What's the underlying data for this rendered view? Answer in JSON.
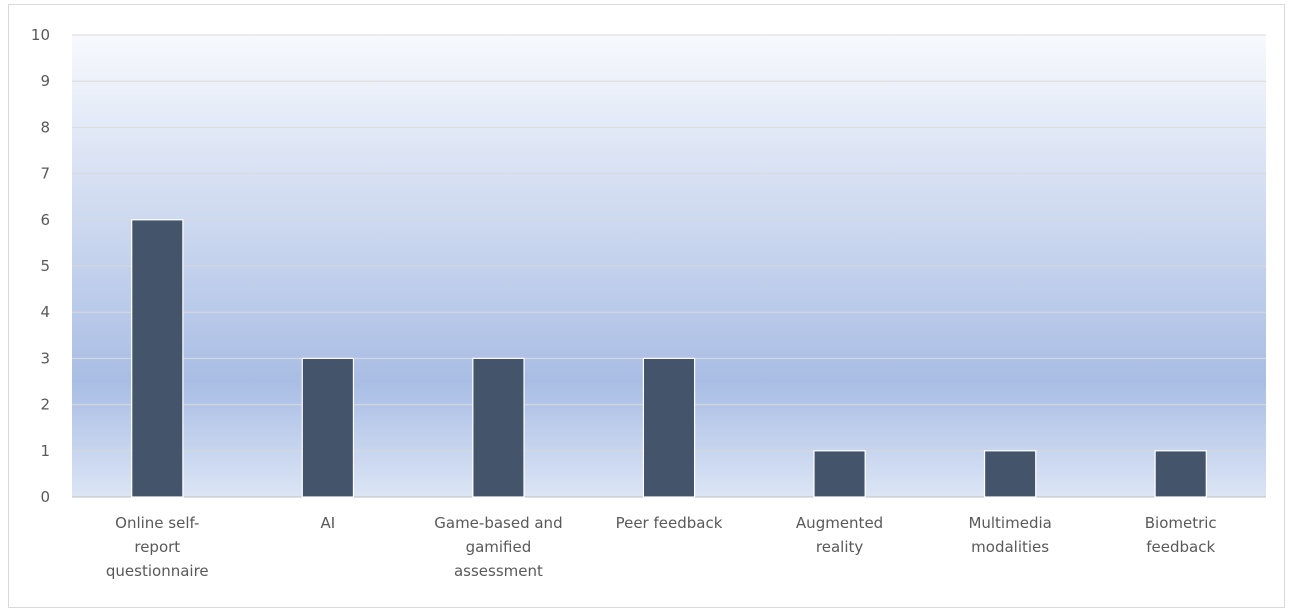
{
  "chart_data": {
    "type": "bar",
    "categories": [
      [
        "Online self-",
        "report",
        "questionnaire"
      ],
      [
        "AI"
      ],
      [
        "Game-based and",
        "gamified",
        "assessment"
      ],
      [
        "Peer feedback"
      ],
      [
        "Augmented",
        "reality"
      ],
      [
        "Multimedia",
        "modalities"
      ],
      [
        "Biometric",
        "feedback"
      ]
    ],
    "values": [
      6,
      3,
      3,
      3,
      1,
      1,
      1
    ],
    "ylim": [
      0,
      10
    ],
    "yticks": [
      0,
      1,
      2,
      3,
      4,
      5,
      6,
      7,
      8,
      9,
      10
    ],
    "grid": true,
    "legend": "none",
    "bar_color": "#44546a",
    "bar_edge_color": "#ffffff",
    "background_gradient": [
      "#f7f9fd",
      "#a9bde4",
      "#dbe5f5"
    ],
    "gridline_color": "#d9d9d9",
    "axis_color": "#bfbfbf"
  }
}
